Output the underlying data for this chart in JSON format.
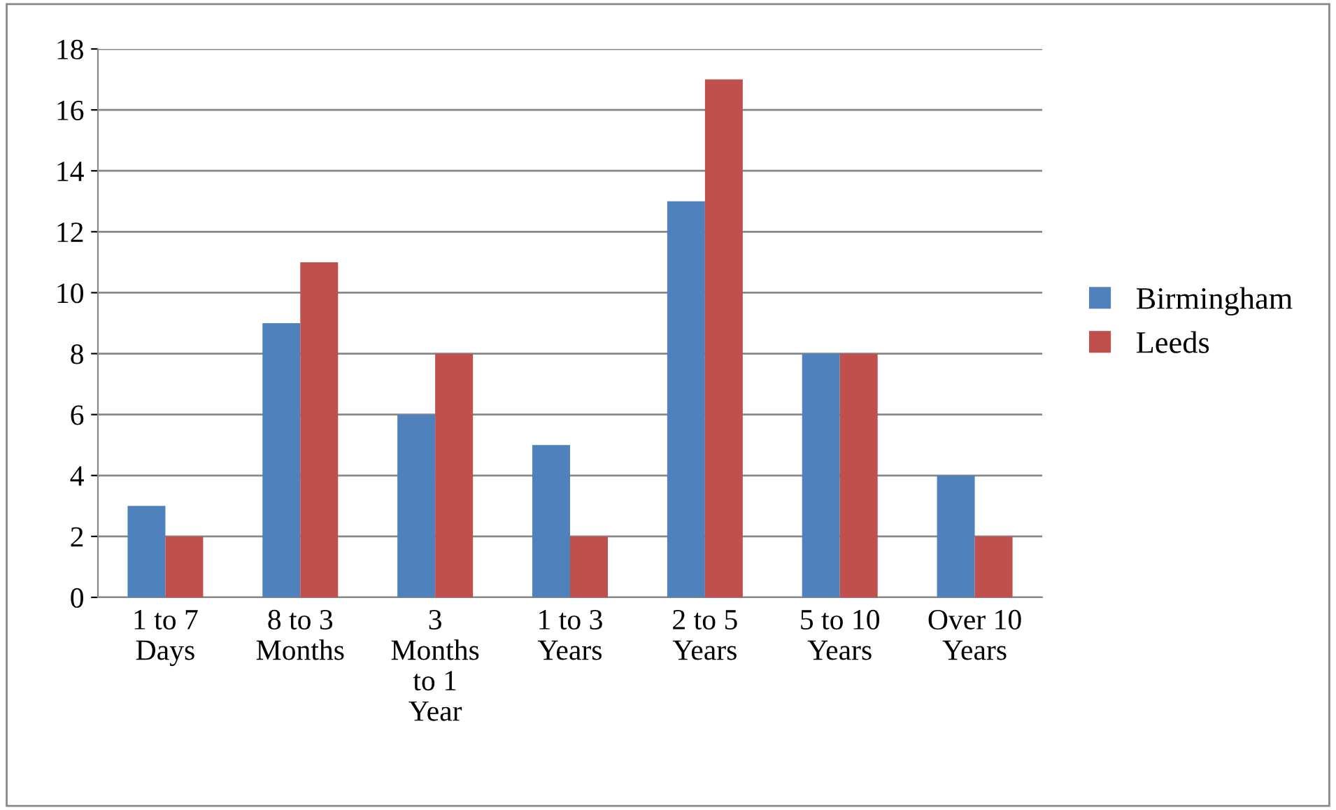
{
  "chart_data": {
    "type": "bar",
    "categories": [
      "1 to 7\nDays",
      "8 to 3\nMonths",
      "3\nMonths\nto 1\nYear",
      "1 to 3\nYears",
      "2 to 5\nYears",
      "5 to 10\nYears",
      "Over 10\nYears"
    ],
    "series": [
      {
        "name": "Birmingham",
        "color": "#4f81bd",
        "values": [
          3,
          9,
          6,
          5,
          13,
          8,
          4
        ]
      },
      {
        "name": "Leeds",
        "color": "#c0504d",
        "values": [
          2,
          11,
          8,
          2,
          17,
          8,
          2
        ]
      }
    ],
    "ylim": [
      0,
      18
    ],
    "yticks": [
      0,
      2,
      4,
      6,
      8,
      10,
      12,
      14,
      16,
      18
    ],
    "grid": "y",
    "legend": "right"
  }
}
